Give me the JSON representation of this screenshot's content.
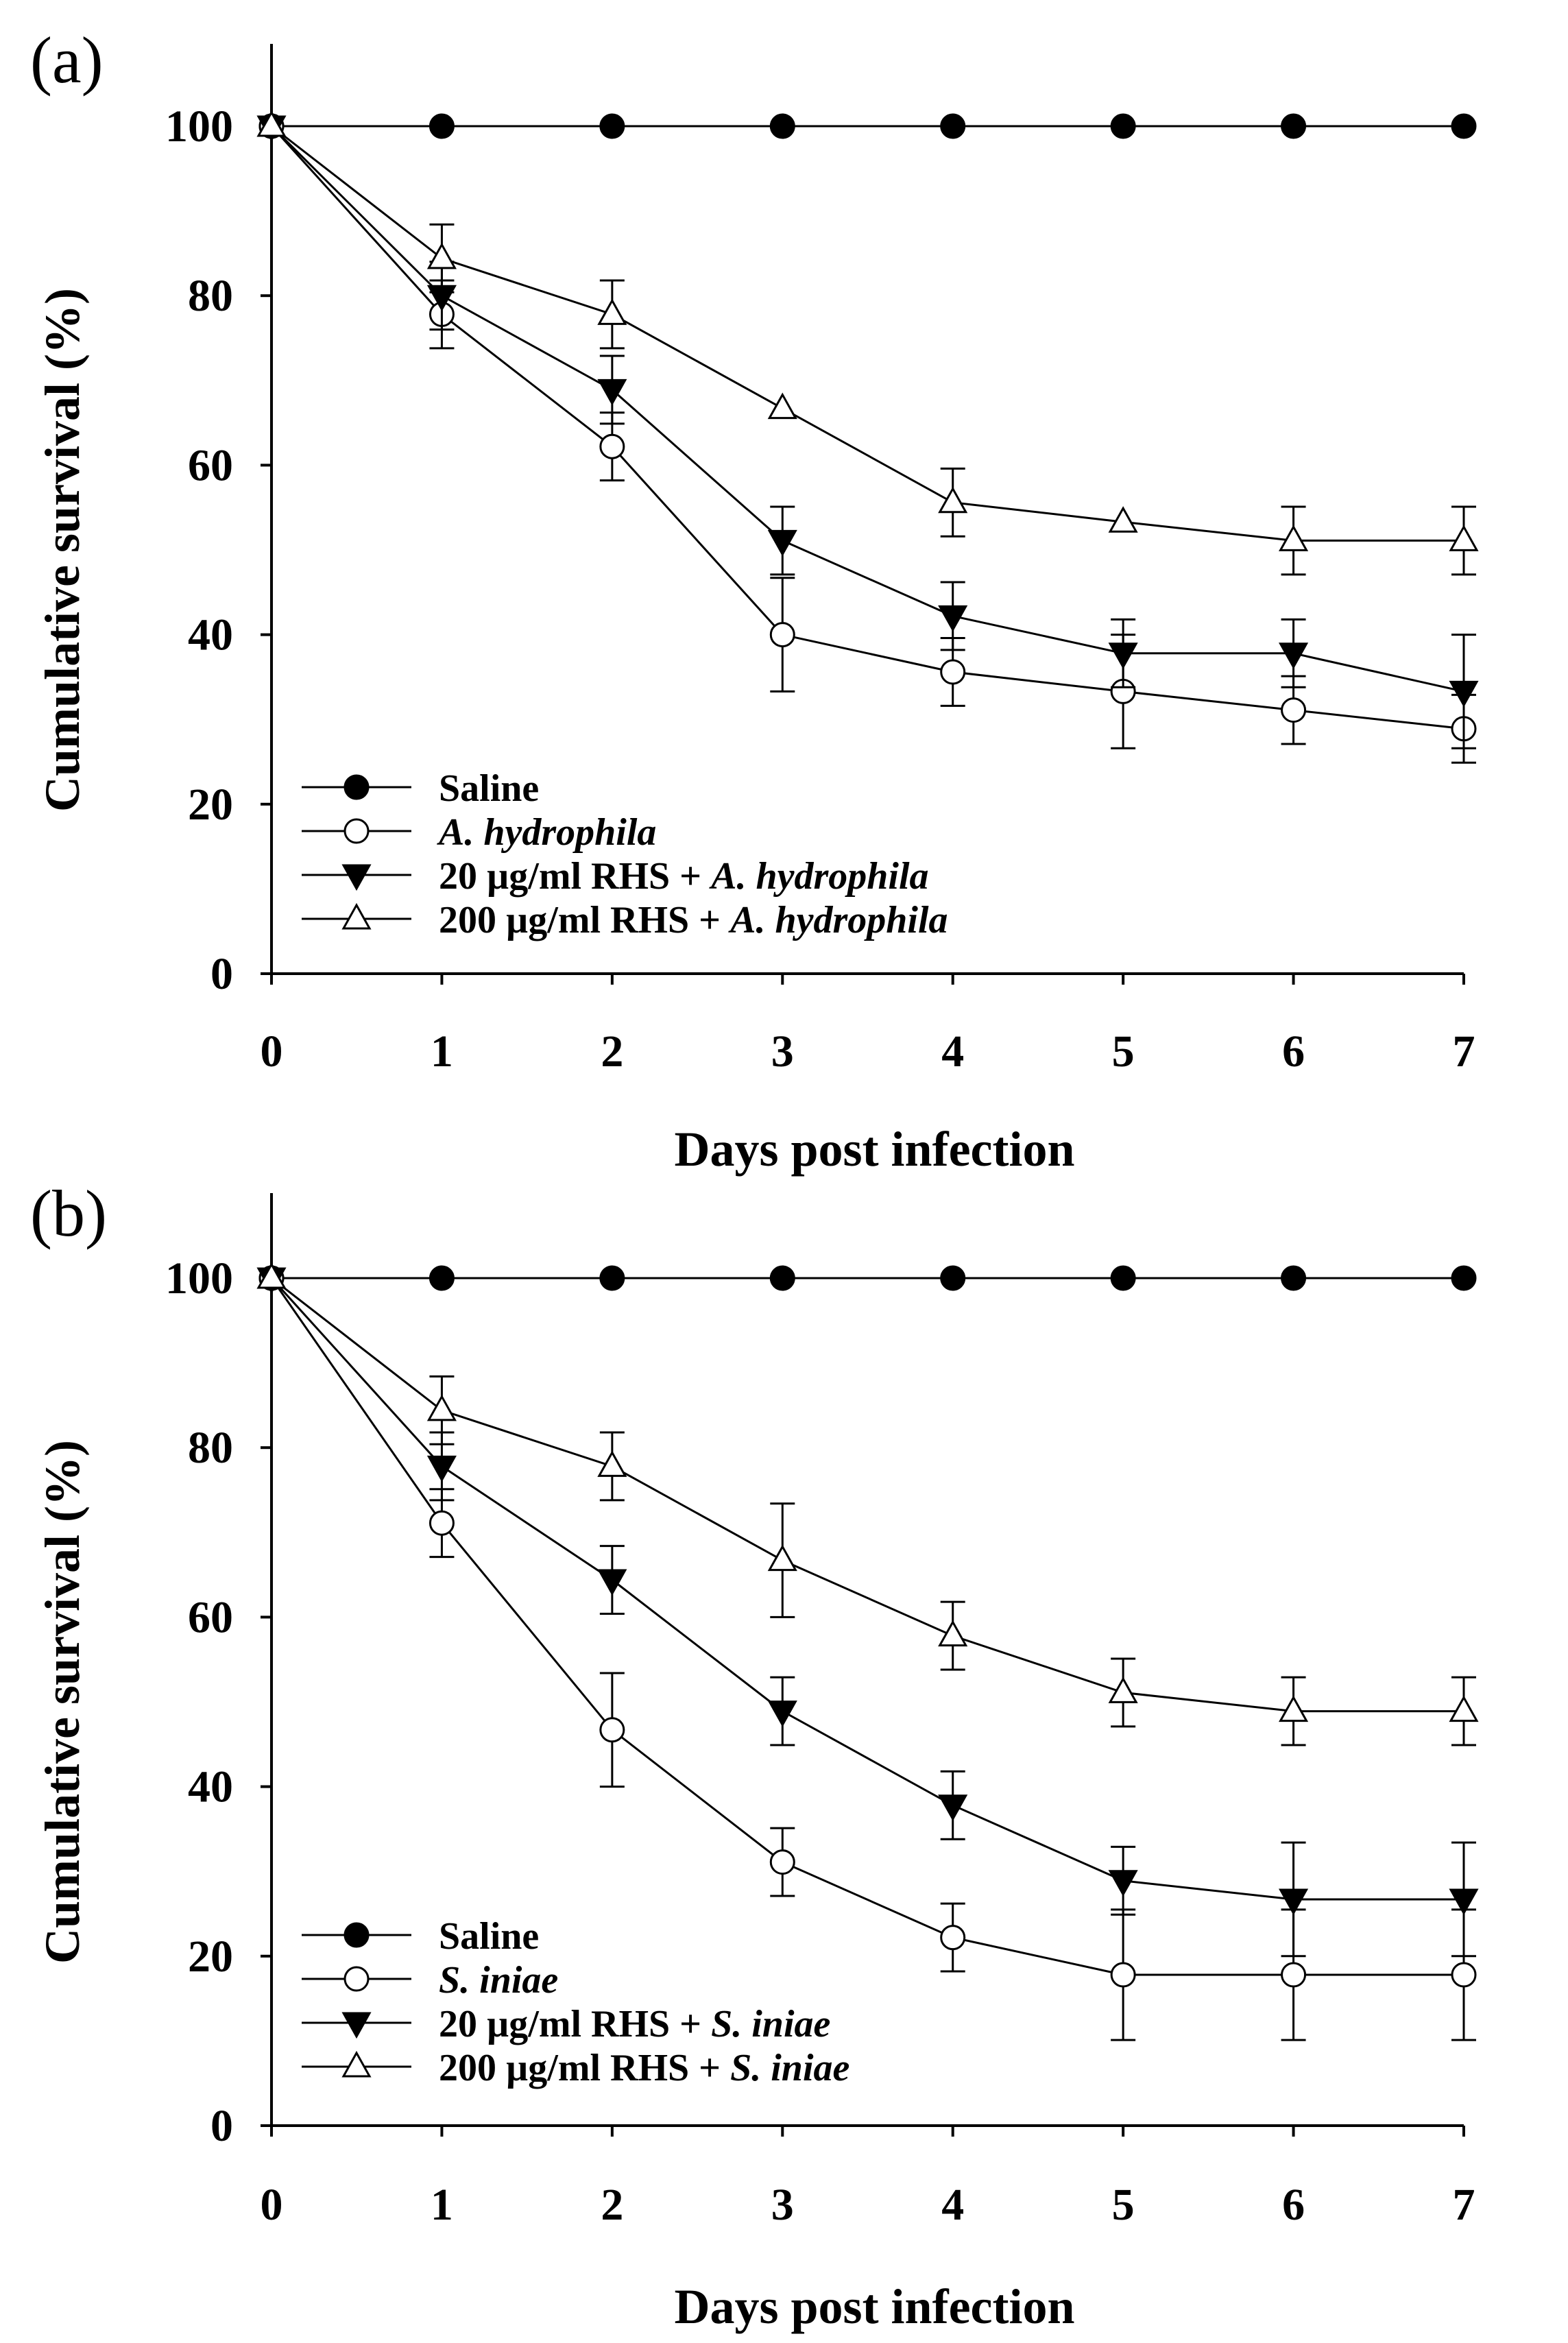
{
  "colors": {
    "ink": "#000000",
    "paper": "#ffffff"
  },
  "chart_data": [
    {
      "type": "line",
      "panel_label": "(a)",
      "xlabel": "Days post infection",
      "ylabel": "Cumulative survival (%)",
      "x": [
        0,
        1,
        2,
        3,
        4,
        5,
        6,
        7
      ],
      "xlim": [
        0,
        7
      ],
      "ylim": [
        0,
        110
      ],
      "yticks": [
        0,
        20,
        40,
        60,
        80,
        100
      ],
      "grid": false,
      "legend_position": "bottom-left",
      "series": [
        {
          "name": "Saline",
          "legend_plain": "Saline",
          "legend_italic": "",
          "marker": "filled-circle",
          "values": [
            100,
            100,
            100,
            100,
            100,
            100,
            100,
            100
          ],
          "errors": [
            0,
            0,
            0,
            0,
            0,
            0,
            0,
            0
          ]
        },
        {
          "name": "A. hydrophila",
          "legend_plain": "",
          "legend_italic": "A. hydrophila",
          "marker": "open-circle",
          "values": [
            100,
            77.8,
            62.2,
            40,
            35.6,
            33.3,
            31.1,
            28.9
          ],
          "errors": [
            0,
            4,
            4,
            6.7,
            4,
            6.7,
            4,
            4
          ]
        },
        {
          "name": "20 µg/ml RHS + A. hydrophila",
          "legend_plain": "20 µg/ml RHS + ",
          "legend_italic": "A. hydrophila",
          "marker": "filled-down-triangle",
          "values": [
            100,
            80,
            68.9,
            51.1,
            42.2,
            37.8,
            37.8,
            33.3
          ],
          "errors": [
            0,
            4,
            4,
            4,
            4,
            4,
            4,
            6.7
          ]
        },
        {
          "name": "200 µg/ml RHS + A. hydrophila",
          "legend_plain": "200 µg/ml RHS + ",
          "legend_italic": "A. hydrophila",
          "marker": "open-up-triangle",
          "values": [
            100,
            84.4,
            77.8,
            66.7,
            55.6,
            53.3,
            51.1,
            51.1
          ],
          "errors": [
            0,
            4,
            4,
            0,
            4,
            0,
            4,
            4
          ]
        }
      ]
    },
    {
      "type": "line",
      "panel_label": "(b)",
      "xlabel": "Days post infection",
      "ylabel": "Cumulative survival (%)",
      "x": [
        0,
        1,
        2,
        3,
        4,
        5,
        6,
        7
      ],
      "xlim": [
        0,
        7
      ],
      "ylim": [
        0,
        110
      ],
      "yticks": [
        0,
        20,
        40,
        60,
        80,
        100
      ],
      "grid": false,
      "legend_position": "bottom-left",
      "series": [
        {
          "name": "Saline",
          "legend_plain": "Saline",
          "legend_italic": "",
          "marker": "filled-circle",
          "values": [
            100,
            100,
            100,
            100,
            100,
            100,
            100,
            100
          ],
          "errors": [
            0,
            0,
            0,
            0,
            0,
            0,
            0,
            0
          ]
        },
        {
          "name": "S. iniae",
          "legend_plain": "",
          "legend_italic": "S. iniae",
          "marker": "open-circle",
          "values": [
            100,
            71.1,
            46.7,
            31.1,
            22.2,
            17.8,
            17.8,
            17.8
          ],
          "errors": [
            0,
            4,
            6.7,
            4,
            4,
            7.7,
            7.7,
            7.7
          ]
        },
        {
          "name": "20 µg/ml RHS + S. iniae",
          "legend_plain": "20 µg/ml RHS + ",
          "legend_italic": "S. iniae",
          "marker": "filled-down-triangle",
          "values": [
            100,
            77.8,
            64.4,
            48.9,
            37.8,
            28.9,
            26.7,
            26.7
          ],
          "errors": [
            0,
            4,
            4,
            4,
            4,
            4,
            6.7,
            6.7
          ]
        },
        {
          "name": "200 µg/ml RHS + S. iniae",
          "legend_plain": "200 µg/ml RHS + ",
          "legend_italic": "S. iniae",
          "marker": "open-up-triangle",
          "values": [
            100,
            84.4,
            77.8,
            66.7,
            57.8,
            51.1,
            48.9,
            48.9
          ],
          "errors": [
            0,
            4,
            4,
            6.7,
            4,
            4,
            4,
            4
          ]
        }
      ]
    }
  ]
}
